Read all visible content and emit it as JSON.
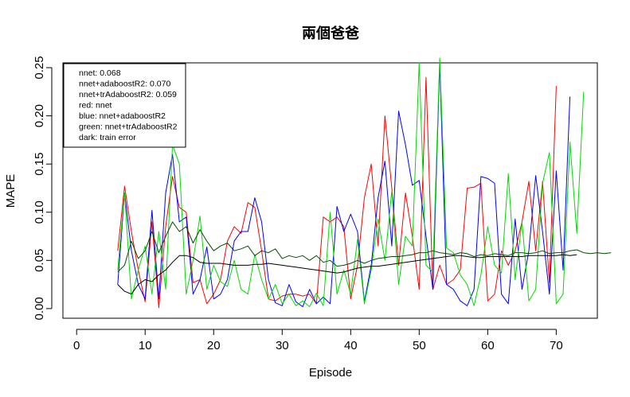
{
  "chart_data": {
    "type": "line",
    "title": "兩個爸爸",
    "xlabel": "Episode",
    "ylabel": "MAPE",
    "xlim": [
      -2,
      76
    ],
    "ylim": [
      -0.01,
      0.255
    ],
    "xticks": [
      0,
      10,
      20,
      30,
      40,
      50,
      60,
      70
    ],
    "yticks": [
      0.0,
      0.05,
      0.1,
      0.15,
      0.2,
      0.25
    ],
    "ytick_labels": [
      "0.00",
      "0.05",
      "0.10",
      "0.15",
      "0.20",
      "0.25"
    ],
    "grid": false,
    "legend": {
      "placement": "top-left",
      "entries": [
        "nnet: 0.068",
        "nnet+adaboostR2: 0.070",
        "nnet+trAdaboostR2: 0.059",
        "red: nnet",
        "blue: nnet+adaboostR2",
        "green: nnet+trAdaboostR2",
        "dark: train error"
      ]
    },
    "x_start": 6,
    "series": [
      {
        "color": "#ff0000",
        "values": [
          0.06,
          0.127,
          0.08,
          0.04,
          0.007,
          0.09,
          0.001,
          0.085,
          0.137,
          0.105,
          0.1,
          0.027,
          0.03,
          0.005,
          0.015,
          0.03,
          0.07,
          0.085,
          0.078,
          0.11,
          0.105,
          0.06,
          0.01,
          0.008,
          0.013,
          0.015,
          0.015,
          0.013,
          0.015,
          0.005,
          0.095,
          0.09,
          0.095,
          0.085,
          0.01,
          0.045,
          0.115,
          0.15,
          0.065,
          0.2,
          0.125,
          0.045,
          0.12,
          0.075,
          0.02,
          0.24,
          0.02,
          0.045,
          0.025,
          0.03,
          0.04,
          0.125,
          0.126,
          0.13,
          0.008,
          0.015,
          0.06,
          0.045,
          0.06,
          0.09,
          0.132,
          0.06,
          0.132,
          0.027,
          0.231
        ]
      },
      {
        "color": "#0000ff",
        "values": [
          0.025,
          0.12,
          0.06,
          0.025,
          0.01,
          0.102,
          0.01,
          0.12,
          0.16,
          0.09,
          0.095,
          0.015,
          0.03,
          0.064,
          0.01,
          0.015,
          0.03,
          0.07,
          0.08,
          0.08,
          0.115,
          0.09,
          0.03,
          0.006,
          0.003,
          0.025,
          0.007,
          0.002,
          0.02,
          0.005,
          0.012,
          0.005,
          0.106,
          0.08,
          0.098,
          0.08,
          0.007,
          0.045,
          0.115,
          0.153,
          0.065,
          0.205,
          0.17,
          0.128,
          0.133,
          0.075,
          0.02,
          0.255,
          0.025,
          0.02,
          0.008,
          0.003,
          0.02,
          0.137,
          0.135,
          0.13,
          0.015,
          0.005,
          0.093,
          0.02,
          0.06,
          0.138,
          0.08,
          0.015,
          0.143,
          0.04,
          0.22
        ]
      },
      {
        "color": "#00dd00",
        "values": [
          0.04,
          0.12,
          0.01,
          0.04,
          0.065,
          0.015,
          0.08,
          0.02,
          0.17,
          0.15,
          0.015,
          0.05,
          0.096,
          0.02,
          0.045,
          0.028,
          0.023,
          0.05,
          0.02,
          0.015,
          0.056,
          0.03,
          0.01,
          0.025,
          0.005,
          0.015,
          0.003,
          0.008,
          0.002,
          0.016,
          0.003,
          0.1,
          0.015,
          0.04,
          0.015,
          0.072,
          0.005,
          0.04,
          0.093,
          0.05,
          0.122,
          0.025,
          0.075,
          0.065,
          0.255,
          0.045,
          0.038,
          0.26,
          0.063,
          0.058,
          0.035,
          0.025,
          0.003,
          0.035,
          0.085,
          0.045,
          0.037,
          0.14,
          0.03,
          0.09,
          0.008,
          0.02,
          0.13,
          0.162,
          0.005,
          0.015,
          0.173,
          0.078,
          0.225
        ]
      },
      {
        "color": "#005000",
        "values": [
          0.038,
          0.045,
          0.07,
          0.052,
          0.06,
          0.08,
          0.058,
          0.075,
          0.09,
          0.08,
          0.085,
          0.068,
          0.082,
          0.07,
          0.06,
          0.065,
          0.068,
          0.06,
          0.062,
          0.065,
          0.055,
          0.06,
          0.058,
          0.062,
          0.052,
          0.055,
          0.053,
          0.055,
          0.05,
          0.055,
          0.048,
          0.05,
          0.044,
          0.045,
          0.047,
          0.05,
          0.047,
          0.05,
          0.052,
          0.053,
          0.054,
          0.054,
          0.055,
          0.056,
          0.058,
          0.058,
          0.06,
          0.058,
          0.057,
          0.056,
          0.058,
          0.057,
          0.054,
          0.056,
          0.055,
          0.057,
          0.056,
          0.055,
          0.058,
          0.058,
          0.057,
          0.058,
          0.06,
          0.057,
          0.058,
          0.058,
          0.06,
          0.061,
          0.058,
          0.057,
          0.058,
          0.057,
          0.058
        ]
      },
      {
        "color": "#000000",
        "values": [
          0.025,
          0.018,
          0.015,
          0.025,
          0.03,
          0.028,
          0.035,
          0.04,
          0.048,
          0.055,
          0.055,
          0.053,
          0.048,
          0.047,
          0.047,
          0.047,
          0.046,
          0.045,
          0.045,
          0.045,
          0.046,
          0.046,
          0.047,
          0.046,
          0.045,
          0.044,
          0.043,
          0.042,
          0.041,
          0.04,
          0.039,
          0.038,
          0.037,
          0.038,
          0.04,
          0.042,
          0.043,
          0.044,
          0.044,
          0.045,
          0.046,
          0.047,
          0.048,
          0.049,
          0.05,
          0.051,
          0.052,
          0.053,
          0.054,
          0.055,
          0.055,
          0.054,
          0.053,
          0.053,
          0.054,
          0.054,
          0.054,
          0.054,
          0.054,
          0.054,
          0.055,
          0.055,
          0.055,
          0.055,
          0.055,
          0.056,
          0.055,
          0.056
        ]
      }
    ]
  }
}
